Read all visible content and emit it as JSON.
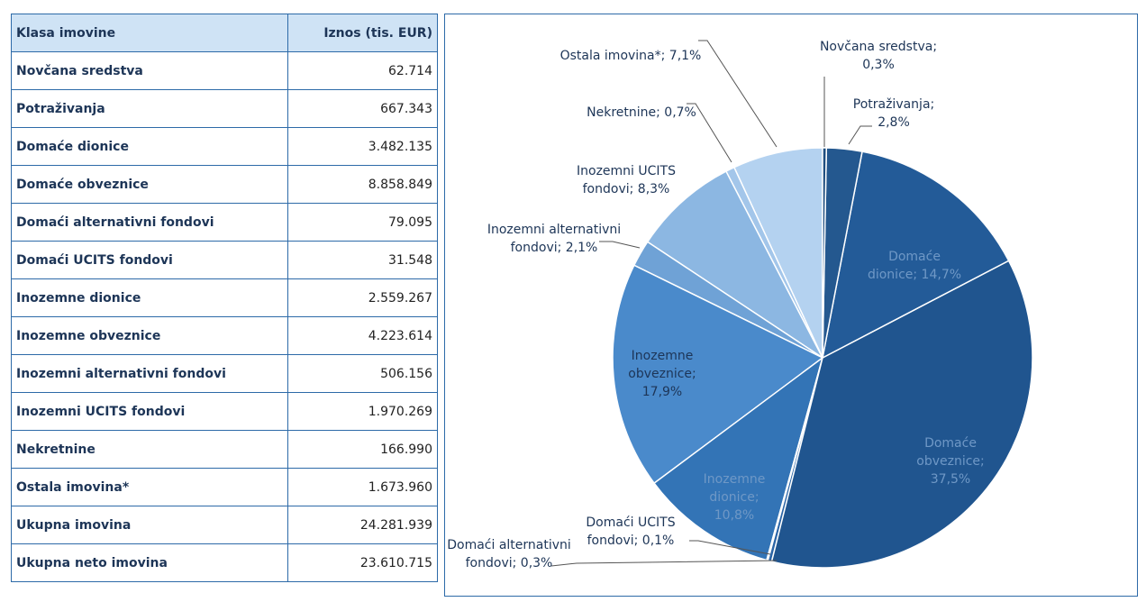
{
  "table": {
    "header": [
      "Klasa imovine",
      "Iznos (tis. EUR)"
    ],
    "rows": [
      [
        "Novčana sredstva",
        "62.714"
      ],
      [
        "Potraživanja",
        "667.343"
      ],
      [
        "Domaće dionice",
        "3.482.135"
      ],
      [
        "Domaće obveznice",
        "8.858.849"
      ],
      [
        "Domaći alternativni fondovi",
        "79.095"
      ],
      [
        "Domaći UCITS fondovi",
        "31.548"
      ],
      [
        "Inozemne dionice",
        "2.559.267"
      ],
      [
        "Inozemne obveznice",
        "4.223.614"
      ],
      [
        "Inozemni alternativni fondovi",
        "506.156"
      ],
      [
        "Inozemni UCITS fondovi",
        "1.970.269"
      ],
      [
        "Nekretnine",
        "166.990"
      ],
      [
        "Ostala imovina*",
        "1.673.960"
      ],
      [
        "Ukupna imovina",
        "24.281.939"
      ],
      [
        "Ukupna neto imovina",
        "23.610.715"
      ]
    ]
  },
  "chart_data": {
    "type": "pie",
    "values": [
      0.3,
      2.8,
      14.7,
      37.5,
      0.3,
      0.1,
      10.8,
      17.9,
      2.1,
      8.3,
      0.7,
      7.1
    ],
    "value_labels": [
      "Novčana sredstva; 0,3%",
      "Potraživanja; 2,8%",
      "Domaće dionice; 14,7%",
      "Domaće obveznice; 37,5%",
      "Domaći alternativni fondovi; 0,3%",
      "Domaći UCITS fondovi; 0,1%",
      "Inozemne dionice; 10,8%",
      "Inozemne obveznice; 17,9%",
      "Inozemni alternativni fondovi; 2,1%",
      "Inozemni UCITS fondovi; 8,3%",
      "Nekretnine; 0,7%",
      "Ostala imovina*; 7,1%"
    ],
    "colors": [
      "#1f4e80",
      "#24588f",
      "#235b98",
      "#20558f",
      "#2a64a6",
      "#3171b3",
      "#3374b6",
      "#4a8acb",
      "#6fa2d6",
      "#8cb7e2",
      "#a3c6ea",
      "#b4d2f0"
    ]
  }
}
